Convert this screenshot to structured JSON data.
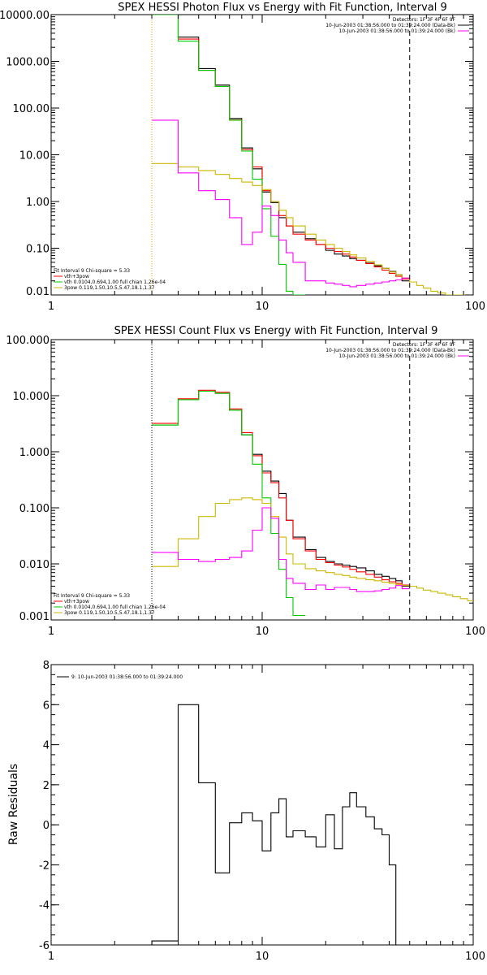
{
  "chart_data": [
    {
      "type": "line",
      "title": "SPEX HESSI Photon Flux vs Energy with Fit Function, Interval 9",
      "xscale": "log",
      "yscale": "log",
      "xlim": [
        1,
        100
      ],
      "ylim": [
        0.01,
        10000
      ],
      "xticks": [
        1,
        10,
        100
      ],
      "xticklabels": [
        "1",
        "10",
        "100"
      ],
      "yticks": [
        0.01,
        0.1,
        1,
        10,
        100,
        1000,
        10000
      ],
      "yticklabels": [
        "0.01",
        "0.10",
        "1.00",
        "10.00",
        "100.00",
        "1000.00",
        "10000.00"
      ],
      "vlines": [
        {
          "x": 3,
          "style": "dotted",
          "color": "#e0a000"
        },
        {
          "x": 50,
          "style": "dashed",
          "color": "#000000"
        }
      ],
      "legend_top": [
        {
          "text": "Detectors: 1F 3F 4F 6F 9F",
          "color": ""
        },
        {
          "text": "10-Jun-2003 01:38:56.000 to 01:39:24.000 (Data-Bk)",
          "color": "#000000"
        },
        {
          "text": "10-Jun-2003 01:38:56.000 to 01:39:24.000 (Bk)",
          "color": "#ff00ff"
        }
      ],
      "legend_bottom": [
        {
          "text": "Fit Interval 9   Chi-square = 5.33",
          "color": ""
        },
        {
          "text": "vth+3pow",
          "color": "#ff0000"
        },
        {
          "text": "vth 0.0104,0.694,1.00  full chian 1.26e-04",
          "color": "#00cc00"
        },
        {
          "text": "3pow 0.119,1.50,10.5,5.47,18.1,1.37",
          "color": "#ccb800"
        }
      ],
      "edges": [
        3,
        4,
        5,
        6,
        7,
        8,
        9,
        10,
        11,
        12,
        13,
        14,
        16,
        18,
        20,
        22,
        24,
        26,
        28,
        31,
        34,
        37,
        40,
        43,
        46,
        50,
        54,
        58,
        63,
        68,
        74,
        80,
        87,
        94,
        100
      ],
      "series": [
        {
          "name": "",
          "color": "#000000",
          "values": [
            10000,
            3300,
            700,
            310,
            60,
            14,
            5,
            1.6,
            0.95,
            0.45,
            0.3,
            0.22,
            0.16,
            0.12,
            0.09,
            0.075,
            0.068,
            0.06,
            0.055,
            0.048,
            0.042,
            0.037,
            0.032,
            0.027,
            0.02
          ]
        },
        {
          "name": "",
          "color": "#ff0000",
          "values": [
            10000,
            3000,
            640,
            290,
            56,
            13,
            5.5,
            1.7,
            1.0,
            0.5,
            0.3,
            0.2,
            0.15,
            0.12,
            0.1,
            0.085,
            0.075,
            0.065,
            0.055,
            0.047,
            0.04,
            0.034,
            0.029,
            0.025,
            0.022
          ]
        },
        {
          "name": "",
          "color": "#00cc00",
          "values": [
            10000,
            2700,
            640,
            290,
            55,
            12,
            3,
            0.7,
            0.18,
            0.045,
            0.012,
            0.003
          ]
        },
        {
          "name": "",
          "color": "#ccb800",
          "values": [
            6.5,
            5.5,
            4.6,
            3.8,
            3.1,
            2.6,
            2.2,
            1.8,
            1.0,
            0.65,
            0.45,
            0.3,
            0.2,
            0.15,
            0.12,
            0.1,
            0.085,
            0.072,
            0.062,
            0.052,
            0.044,
            0.037,
            0.031,
            0.027,
            0.023,
            0.019,
            0.016,
            0.014,
            0.012,
            0.011,
            0.01,
            0.009,
            0.0085,
            0.008
          ]
        },
        {
          "name": "",
          "color": "#ff00ff",
          "values": [
            55,
            4.1,
            1.7,
            1.1,
            0.45,
            0.12,
            0.22,
            0.8,
            0.5,
            0.15,
            0.08,
            0.05,
            0.02,
            0.02,
            0.018,
            0.017,
            0.016,
            0.015,
            0.016,
            0.017,
            0.018,
            0.019,
            0.02,
            0.021,
            0.023
          ]
        }
      ]
    },
    {
      "type": "line",
      "title": "SPEX HESSI Count Flux vs Energy with Fit Function, Interval 9",
      "xscale": "log",
      "yscale": "log",
      "xlim": [
        1,
        100
      ],
      "ylim": [
        0.001,
        100
      ],
      "xticks": [
        1,
        10,
        100
      ],
      "xticklabels": [
        "1",
        "10",
        "100"
      ],
      "yticks": [
        0.001,
        0.01,
        0.1,
        1,
        10,
        100
      ],
      "yticklabels": [
        "0.001",
        "0.010",
        "0.100",
        "1.000",
        "10.000",
        "100.000"
      ],
      "vlines": [
        {
          "x": 3,
          "style": "dotted",
          "color": "#000000"
        },
        {
          "x": 50,
          "style": "dashed",
          "color": "#000000"
        }
      ],
      "legend_top": [
        {
          "text": "Detectors: 1F 3F 4F 6F 9F",
          "color": ""
        },
        {
          "text": "10-Jun-2003 01:38:56.000 to 01:39:24.000 (Data-Bk)",
          "color": "#000000"
        },
        {
          "text": "10-Jun-2003 01:38:56.000 to 01:39:24.000 (Bk)",
          "color": "#ff00ff"
        }
      ],
      "legend_bottom": [
        {
          "text": "Fit Interval 9   Chi-square = 5.33",
          "color": ""
        },
        {
          "text": "vth+3pow",
          "color": "#ff0000"
        },
        {
          "text": "vth 0.0104,0.694,1.00  full chian 1.26e-04",
          "color": "#00cc00"
        },
        {
          "text": "3pow 0.119,1.50,10.5,5.47,18.1,1.37",
          "color": "#ccb800"
        }
      ],
      "edges": [
        3,
        4,
        5,
        6,
        7,
        8,
        9,
        10,
        11,
        12,
        13,
        14,
        16,
        18,
        20,
        22,
        24,
        26,
        28,
        31,
        34,
        37,
        40,
        43,
        46,
        50,
        54,
        58,
        63,
        68,
        74,
        80,
        87,
        94,
        100
      ],
      "series": [
        {
          "name": "",
          "color": "#000000",
          "values": [
            3.0,
            8.5,
            12,
            11,
            5.5,
            2.0,
            0.9,
            0.45,
            0.3,
            0.18,
            0.06,
            0.03,
            0.018,
            0.013,
            0.011,
            0.01,
            0.0095,
            0.009,
            0.0085,
            0.0075,
            0.0065,
            0.006,
            0.0055,
            0.005,
            0.004
          ]
        },
        {
          "name": "",
          "color": "#ff0000",
          "values": [
            3.2,
            8.8,
            12.5,
            11.5,
            5.8,
            2.2,
            0.85,
            0.42,
            0.28,
            0.15,
            0.06,
            0.028,
            0.017,
            0.012,
            0.0105,
            0.0095,
            0.0088,
            0.008,
            0.0072,
            0.0065,
            0.0058,
            0.0052,
            0.0048,
            0.0045,
            0.0042
          ]
        },
        {
          "name": "",
          "color": "#00cc00",
          "values": [
            3.0,
            8.5,
            12,
            11,
            5.5,
            2.0,
            0.6,
            0.15,
            0.035,
            0.008,
            0.0025,
            0.0012
          ]
        },
        {
          "name": "",
          "color": "#ccb800",
          "values": [
            0.009,
            0.028,
            0.07,
            0.12,
            0.14,
            0.15,
            0.14,
            0.12,
            0.07,
            0.03,
            0.015,
            0.01,
            0.0082,
            0.0075,
            0.007,
            0.0065,
            0.0062,
            0.0058,
            0.0055,
            0.0052,
            0.005,
            0.0047,
            0.0045,
            0.0043,
            0.0041,
            0.004,
            0.0037,
            0.0034,
            0.0032,
            0.003,
            0.0028,
            0.0026,
            0.0024,
            0.0022
          ]
        },
        {
          "name": "",
          "color": "#ff00ff",
          "values": [
            0.016,
            0.012,
            0.011,
            0.012,
            0.013,
            0.017,
            0.04,
            0.1,
            0.065,
            0.012,
            0.0055,
            0.0045,
            0.0035,
            0.0042,
            0.0035,
            0.0038,
            0.0038,
            0.0035,
            0.0032,
            0.0032,
            0.0033,
            0.0035,
            0.0037,
            0.0041,
            0.0036
          ]
        }
      ]
    },
    {
      "type": "line",
      "title": "",
      "ylabel": "Raw Residuals",
      "xscale": "log",
      "yscale": "linear",
      "xlim": [
        1,
        100
      ],
      "ylim": [
        -6,
        8
      ],
      "xticks": [
        1,
        10,
        100
      ],
      "xticklabels": [
        "1",
        "10",
        "100"
      ],
      "yticks": [
        -6,
        -4,
        -2,
        0,
        2,
        4,
        6,
        8
      ],
      "yticklabels": [
        "-6",
        "-4",
        "-2",
        "0",
        "2",
        "4",
        "6",
        "8"
      ],
      "legend_top": [
        {
          "text": "9: 10-Jun-2003 01:38:56.000 to 01:39:24.000",
          "color": "#000000"
        }
      ],
      "edges": [
        3,
        4,
        5,
        6,
        7,
        8,
        9,
        10,
        11,
        12,
        13,
        14,
        16,
        18,
        20,
        22,
        24,
        26,
        28,
        31,
        34,
        37,
        40,
        43,
        46,
        50
      ],
      "series": [
        {
          "name": "",
          "color": "#000000",
          "values": [
            -5.8,
            6.0,
            2.1,
            -2.4,
            0.1,
            0.6,
            0.2,
            -1.3,
            0.6,
            1.3,
            -0.6,
            -0.3,
            -0.6,
            -1.1,
            0.5,
            -1.2,
            0.9,
            1.6,
            0.9,
            0.4,
            -0.2,
            -0.5,
            -2.0,
            -6.0
          ]
        }
      ]
    }
  ]
}
